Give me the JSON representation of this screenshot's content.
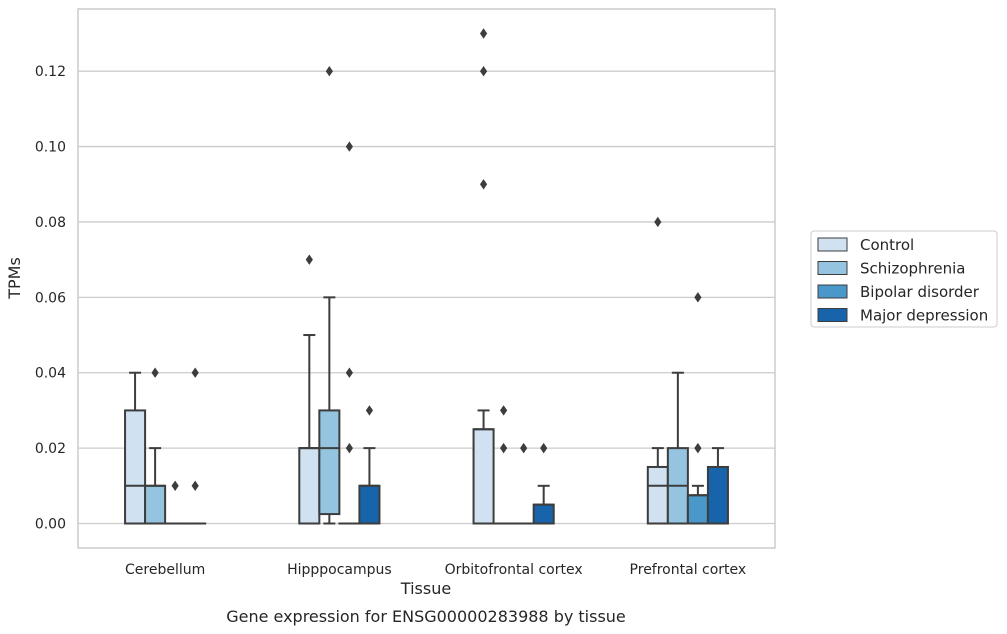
{
  "chart_data": {
    "type": "box",
    "caption": "Gene expression for ENSG00000283988 by tissue",
    "xlabel": "Tissue",
    "ylabel": "TPMs",
    "ylim": [
      -0.0065,
      0.1365
    ],
    "yticks": [
      "0.00",
      "0.02",
      "0.04",
      "0.06",
      "0.08",
      "0.10",
      "0.12"
    ],
    "ytick_values": [
      0,
      0.02,
      0.04,
      0.06,
      0.08,
      0.1,
      0.12
    ],
    "grid": "horizontal",
    "legend_position": "right",
    "categories": [
      "Cerebellum",
      "Hipppocampus",
      "Orbitofrontal cortex",
      "Prefrontal cortex"
    ],
    "series": [
      {
        "name": "Control",
        "color": "#d0e1f2",
        "boxes": [
          {
            "q1": 0,
            "median": 0.01,
            "q3": 0.03,
            "whislo": 0,
            "whishi": 0.04,
            "fliers": []
          },
          {
            "q1": 0,
            "median": 0.02,
            "q3": 0.02,
            "whislo": 0,
            "whishi": 0.05,
            "fliers": [
              0.07
            ]
          },
          {
            "q1": 0,
            "median": 0.025,
            "q3": 0.025,
            "whislo": 0,
            "whishi": 0.03,
            "fliers": [
              0.09,
              0.12,
              0.13
            ]
          },
          {
            "q1": 0,
            "median": 0.01,
            "q3": 0.015,
            "whislo": 0,
            "whishi": 0.02,
            "fliers": [
              0.08
            ]
          }
        ]
      },
      {
        "name": "Schizophrenia",
        "color": "#94c4df",
        "boxes": [
          {
            "q1": 0,
            "median": 0.01,
            "q3": 0.01,
            "whislo": 0,
            "whishi": 0.02,
            "fliers": [
              0.04
            ]
          },
          {
            "q1": 0.0025,
            "median": 0.02,
            "q3": 0.03,
            "whislo": 0,
            "whishi": 0.06,
            "fliers": [
              0.12
            ]
          },
          {
            "q1": 0,
            "median": 0,
            "q3": 0,
            "whislo": 0,
            "whishi": 0,
            "fliers": [
              0.02,
              0.03
            ]
          },
          {
            "q1": 0,
            "median": 0.01,
            "q3": 0.02,
            "whislo": 0,
            "whishi": 0.04,
            "fliers": []
          }
        ]
      },
      {
        "name": "Bipolar disorder",
        "color": "#4a98c9",
        "boxes": [
          {
            "q1": 0,
            "median": 0,
            "q3": 0,
            "whislo": 0,
            "whishi": 0,
            "fliers": [
              0.01
            ]
          },
          {
            "q1": 0,
            "median": 0,
            "q3": 0,
            "whislo": 0,
            "whishi": 0,
            "fliers": [
              0.02,
              0.04,
              0.1
            ]
          },
          {
            "q1": 0,
            "median": 0,
            "q3": 0,
            "whislo": 0,
            "whishi": 0,
            "fliers": [
              0.02
            ]
          },
          {
            "q1": 0,
            "median": 0.0075,
            "q3": 0.0075,
            "whislo": 0,
            "whishi": 0.01,
            "fliers": [
              0.02,
              0.06
            ]
          }
        ]
      },
      {
        "name": "Major depression",
        "color": "#1764ab",
        "boxes": [
          {
            "q1": 0,
            "median": 0,
            "q3": 0,
            "whislo": 0,
            "whishi": 0,
            "fliers": [
              0.01,
              0.04
            ]
          },
          {
            "q1": 0,
            "median": 0.01,
            "q3": 0.01,
            "whislo": 0,
            "whishi": 0.02,
            "fliers": [
              0.03
            ]
          },
          {
            "q1": 0,
            "median": 0.005,
            "q3": 0.005,
            "whislo": 0,
            "whishi": 0.01,
            "fliers": [
              0.02
            ]
          },
          {
            "q1": 0,
            "median": 0.015,
            "q3": 0.015,
            "whislo": 0,
            "whishi": 0.02,
            "fliers": []
          }
        ]
      }
    ]
  }
}
